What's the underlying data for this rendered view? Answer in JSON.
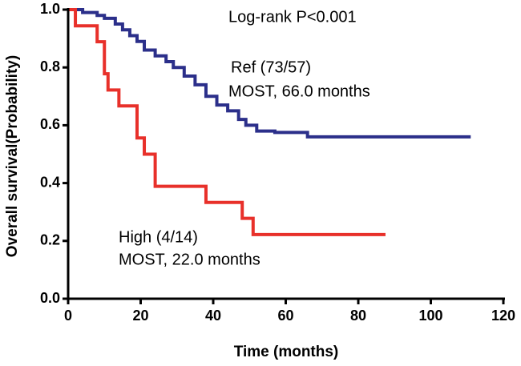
{
  "chart_data": {
    "type": "step",
    "ylabel": "Overall survival(Probability)",
    "xlabel": "Time (months)",
    "xlim": [
      0,
      120
    ],
    "xticks": [
      0,
      20,
      40,
      60,
      80,
      100,
      120
    ],
    "ylim": [
      0,
      1
    ],
    "yticks": [
      {
        "value": 0,
        "label": "0.0"
      },
      {
        "value": 0.2,
        "label": "0.2"
      },
      {
        "value": 0.4,
        "label": "0.4"
      },
      {
        "value": 0.6,
        "label": "0.6"
      },
      {
        "value": 0.8,
        "label": "0.8"
      },
      {
        "value": 1,
        "label": "1.0"
      }
    ],
    "annotations": [
      "Log-rank P<0.001",
      "Ref (73/57)",
      "MOST, 66.0 months",
      "High (4/14)",
      "MOST, 22.0 months"
    ],
    "series": [
      {
        "color": "#2b2f8a",
        "x": [
          0,
          4,
          8,
          10,
          13,
          15,
          17,
          19,
          21,
          24,
          27,
          29,
          32,
          35,
          38,
          41,
          44,
          47,
          49,
          52,
          57,
          66,
          111
        ],
        "values": [
          1,
          0.99,
          0.98,
          0.97,
          0.95,
          0.93,
          0.91,
          0.89,
          0.86,
          0.84,
          0.82,
          0.8,
          0.77,
          0.74,
          0.7,
          0.67,
          0.65,
          0.62,
          0.6,
          0.58,
          0.575,
          0.56,
          0.56
        ]
      },
      {
        "color": "#e8302a",
        "x": [
          0,
          2,
          8,
          10,
          11,
          14,
          19,
          21,
          24,
          38,
          48,
          51,
          87.5
        ],
        "values": [
          1,
          0.944,
          0.889,
          0.778,
          0.722,
          0.667,
          0.556,
          0.5,
          0.389,
          0.333,
          0.278,
          0.222,
          0.222
        ]
      }
    ]
  }
}
